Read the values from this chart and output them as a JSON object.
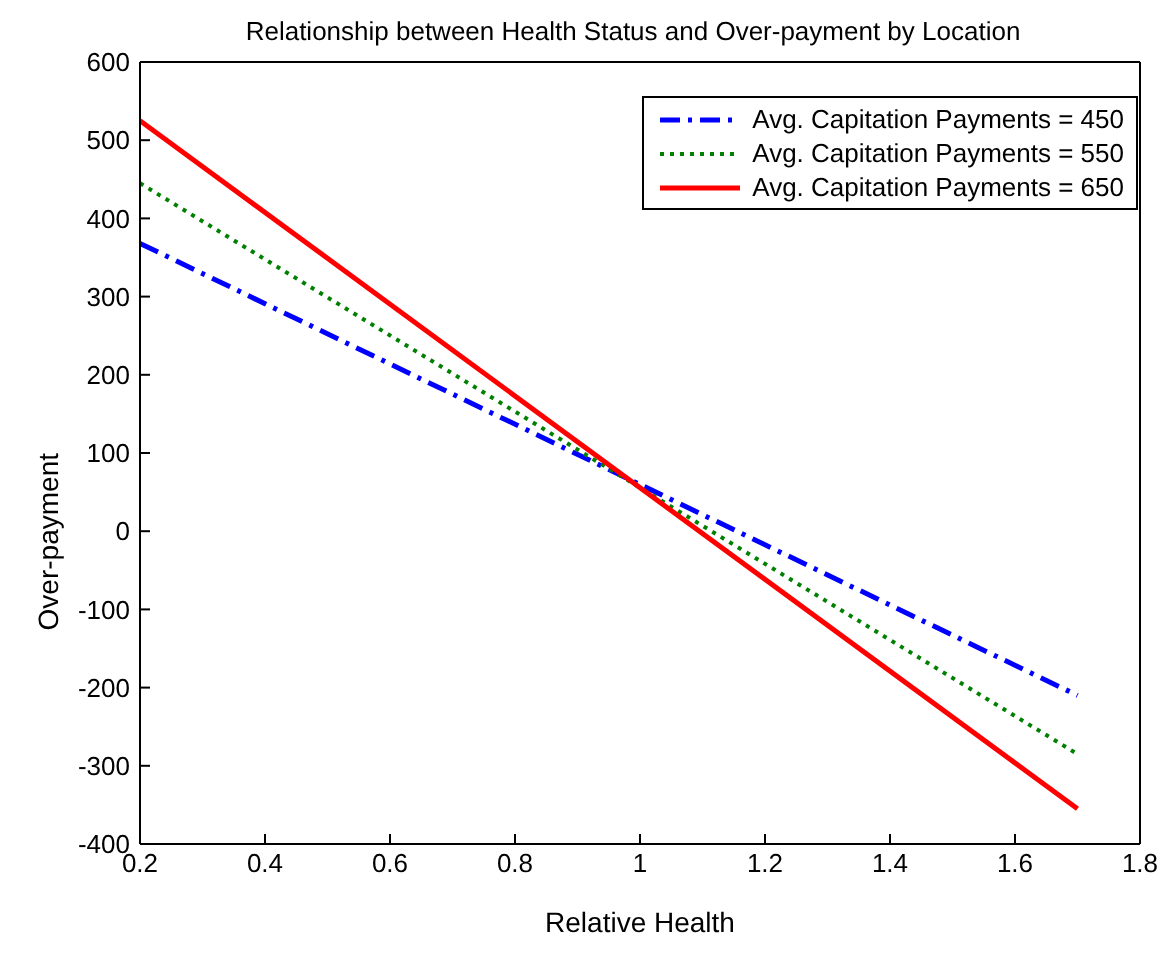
{
  "chart_data": {
    "type": "line",
    "title": "Relationship between Health Status and Over-payment by Location",
    "xlabel": "Relative Health",
    "ylabel": "Over-payment",
    "x": [
      0.2,
      1.7
    ],
    "series": [
      {
        "name": "Avg. Capitation Payments = 450",
        "color": "#0000ff",
        "values": [
          368,
          -210
        ],
        "line_style": "dashed"
      },
      {
        "name": "Avg. Capitation Payments = 550",
        "color": "#008000",
        "values": [
          445,
          -285
        ],
        "line_style": "dotted"
      },
      {
        "name": "Avg. Capitation Payments = 650",
        "color": "#ff0000",
        "values": [
          525,
          -355
        ],
        "line_style": "solid"
      }
    ],
    "xlim": [
      0.2,
      1.8
    ],
    "xticks": [
      0.2,
      0.4,
      0.6,
      0.8,
      1,
      1.2,
      1.4,
      1.6,
      1.8
    ],
    "ylim": [
      -400,
      600
    ],
    "yticks": [
      -400,
      -300,
      -200,
      -100,
      0,
      100,
      200,
      300,
      400,
      500,
      600
    ],
    "grid": false,
    "legend": "top right",
    "marker": "none"
  }
}
